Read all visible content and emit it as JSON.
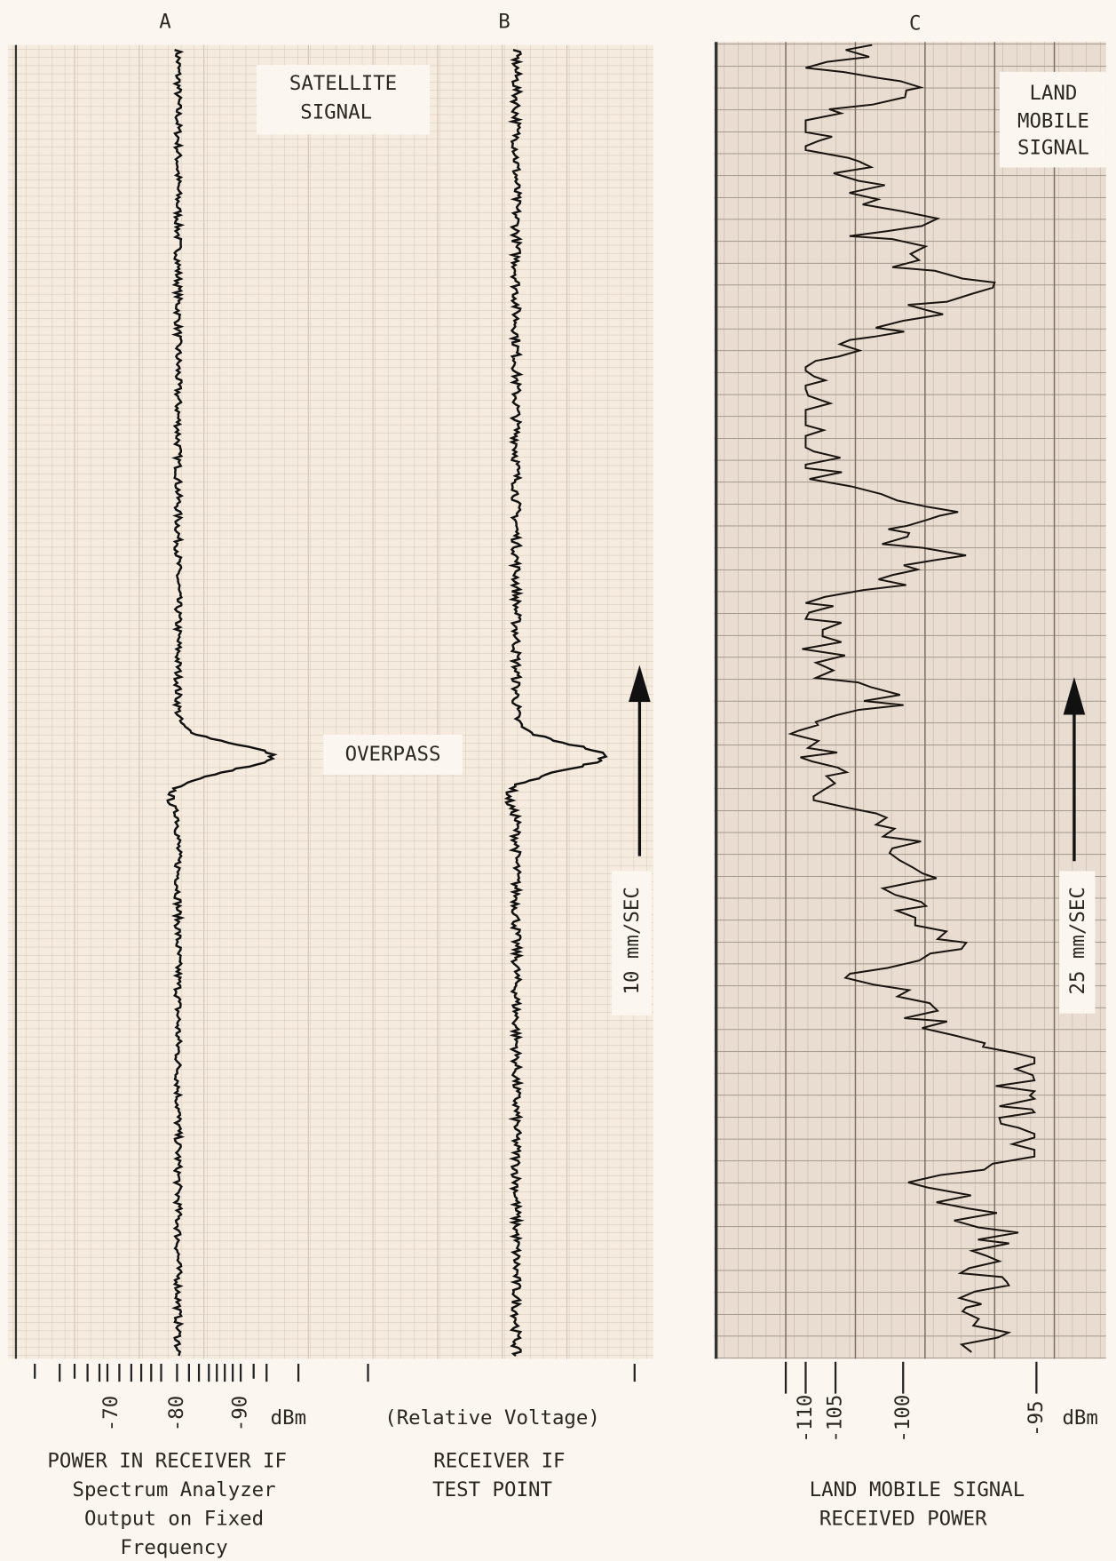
{
  "panel_a": {
    "letter": "A",
    "label_lines": [
      "SATELLITE",
      "SIGNAL"
    ],
    "overpass": "OVERPASS",
    "ticks": [
      "-70",
      "-80",
      "-90"
    ],
    "unit": "dBm",
    "caption": [
      "POWER IN RECEIVER IF",
      "Spectrum Analyzer",
      "Output on Fixed",
      "Frequency"
    ]
  },
  "panel_b": {
    "letter": "B",
    "speed": "10 mm/SEC",
    "axis_note": "(Relative Voltage)",
    "caption": [
      "RECEIVER IF",
      "TEST POINT"
    ]
  },
  "panel_c": {
    "letter": "C",
    "label_lines": [
      "LAND",
      "MOBILE",
      "SIGNAL"
    ],
    "speed": "25 mm/SEC",
    "ticks": [
      "-110",
      "-105",
      "-100",
      "-95"
    ],
    "unit": "dBm",
    "caption": [
      "LAND MOBILE SIGNAL",
      "RECEIVED POWER"
    ]
  }
}
